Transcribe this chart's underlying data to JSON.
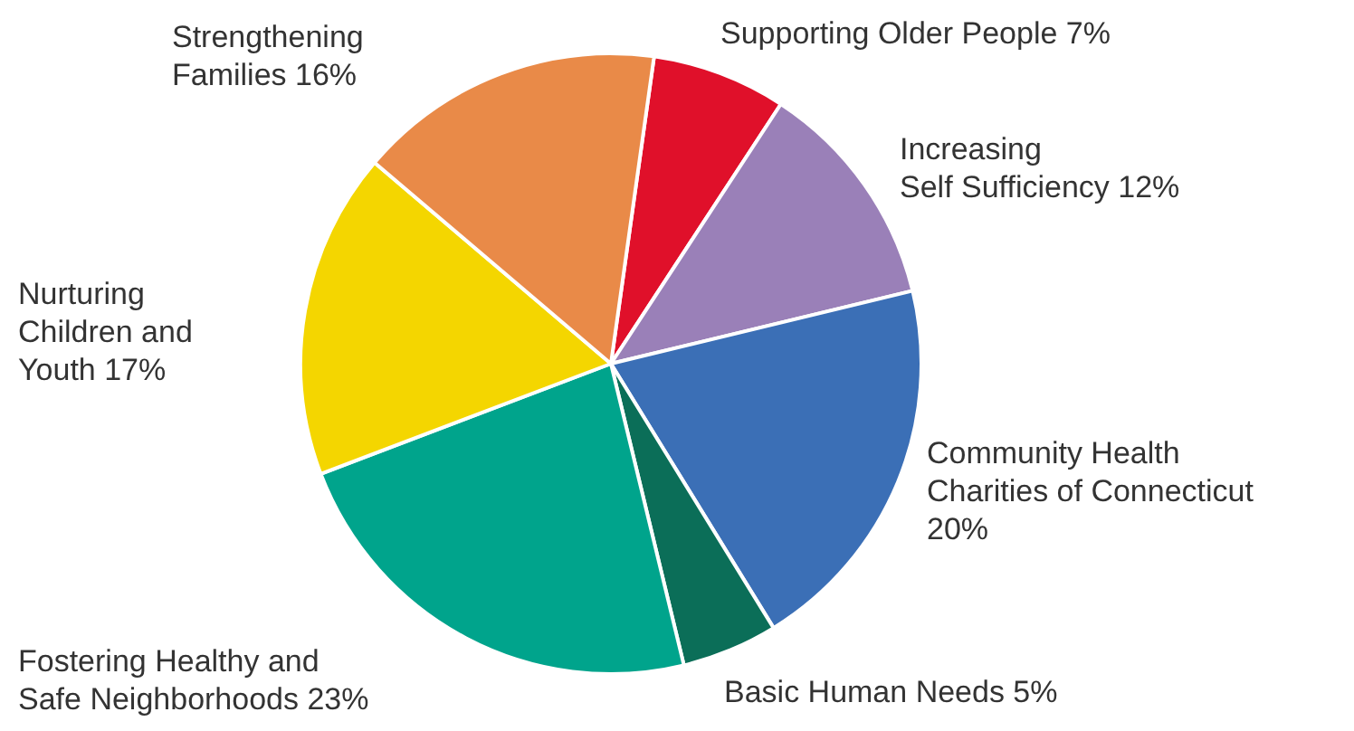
{
  "chart_data": {
    "type": "pie",
    "categories": [
      "Supporting Older People",
      "Increasing Self Sufficiency",
      "Community Health Charities of Connecticut",
      "Basic Human Needs",
      "Fostering Healthy and Safe Neighborhoods",
      "Nurturing Children and Youth",
      "Strengthening Families"
    ],
    "values": [
      7,
      12,
      20,
      5,
      23,
      17,
      16
    ],
    "value_labels": [
      "7%",
      "12%",
      "20%",
      "5%",
      "23%",
      "17%",
      "16%"
    ],
    "colors": [
      "#e0102a",
      "#9a80b8",
      "#3b6fb6",
      "#0b6e58",
      "#00a48c",
      "#f4d600",
      "#e98a48"
    ],
    "legend": false
  }
}
